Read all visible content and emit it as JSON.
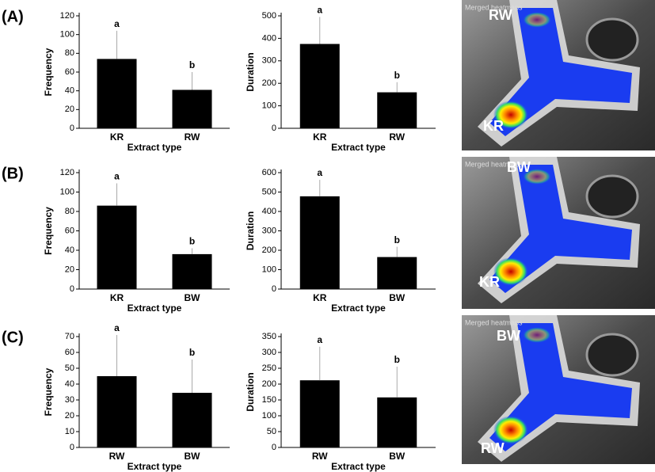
{
  "panels": [
    {
      "label": "(A)",
      "caption": "Merged heatmaps",
      "top_label": "RW",
      "bottom_label": "KR"
    },
    {
      "label": "(B)",
      "caption": "Merged heatmaps",
      "top_label": "BW",
      "bottom_label": "KR"
    },
    {
      "label": "(C)",
      "caption": "Merged heatmaps",
      "top_label": "BW",
      "bottom_label": "RW"
    }
  ],
  "chart_data": [
    {
      "type": "bar",
      "ylabel": "Frequency",
      "xlabel": "Extract type",
      "categories": [
        "KR",
        "RW"
      ],
      "values": [
        74,
        41
      ],
      "errors": [
        30,
        19
      ],
      "letters": [
        "a",
        "b"
      ],
      "color": "#000000",
      "ylim": [
        0,
        120
      ],
      "yticks": [
        0,
        20,
        40,
        60,
        80,
        100,
        120
      ]
    },
    {
      "type": "bar",
      "ylabel": "Duration",
      "xlabel": "Extract type",
      "categories": [
        "KR",
        "RW"
      ],
      "values": [
        375,
        160
      ],
      "errors": [
        120,
        45
      ],
      "letters": [
        "a",
        "b"
      ],
      "color": "#000000",
      "ylim": [
        0,
        500
      ],
      "yticks": [
        0,
        100,
        200,
        300,
        400,
        500
      ]
    },
    {
      "type": "bar",
      "ylabel": "Frequency",
      "xlabel": "Extract type",
      "categories": [
        "KR",
        "BW"
      ],
      "values": [
        86,
        36
      ],
      "errors": [
        23,
        6
      ],
      "letters": [
        "a",
        "b"
      ],
      "color": "#000000",
      "ylim": [
        0,
        120
      ],
      "yticks": [
        0,
        20,
        40,
        60,
        80,
        100,
        120
      ]
    },
    {
      "type": "bar",
      "ylabel": "Duration",
      "xlabel": "Extract type",
      "categories": [
        "KR",
        "BW"
      ],
      "values": [
        478,
        165
      ],
      "errors": [
        85,
        53
      ],
      "letters": [
        "a",
        "b"
      ],
      "color": "#000000",
      "ylim": [
        0,
        600
      ],
      "yticks": [
        0,
        100,
        200,
        300,
        400,
        500,
        600
      ]
    },
    {
      "type": "bar",
      "ylabel": "Frequency",
      "xlabel": "Extract type",
      "categories": [
        "RW",
        "BW"
      ],
      "values": [
        45,
        34.5
      ],
      "errors": [
        26,
        21
      ],
      "letters": [
        "a",
        "b"
      ],
      "color": "#000000",
      "ylim": [
        0,
        70
      ],
      "yticks": [
        0,
        10,
        20,
        30,
        40,
        50,
        60,
        70
      ]
    },
    {
      "type": "bar",
      "ylabel": "Duration",
      "xlabel": "Extract type",
      "categories": [
        "RW",
        "BW"
      ],
      "values": [
        212,
        158
      ],
      "errors": [
        106,
        97
      ],
      "letters": [
        "a",
        "b"
      ],
      "color": "#000000",
      "ylim": [
        0,
        350
      ],
      "yticks": [
        0,
        50,
        100,
        150,
        200,
        250,
        300,
        350
      ]
    }
  ]
}
